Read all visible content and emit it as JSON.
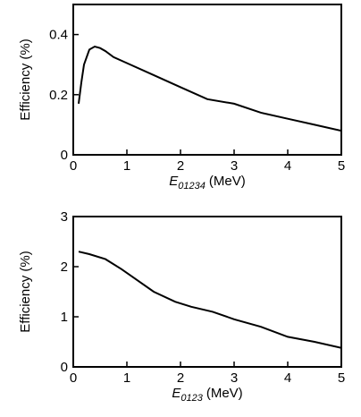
{
  "chart_data": [
    {
      "type": "line",
      "ylabel": "Efficiency (%)",
      "xlabel": "E",
      "xlabel_sub": "01234",
      "xlabel_unit": "(MeV)",
      "xlim": [
        0,
        5
      ],
      "xticks": [
        0,
        1,
        2,
        3,
        4,
        5
      ],
      "ylim": [
        0,
        0.5
      ],
      "yticks": [
        0,
        0.2,
        0.4
      ],
      "series": [
        {
          "color": "#000000",
          "x": [
            0.1,
            0.15,
            0.2,
            0.3,
            0.4,
            0.5,
            0.6,
            0.75,
            1,
            1.5,
            2,
            2.5,
            3,
            3.5,
            4,
            4.5,
            5
          ],
          "values": [
            0.17,
            0.24,
            0.3,
            0.35,
            0.36,
            0.355,
            0.345,
            0.325,
            0.305,
            0.265,
            0.225,
            0.185,
            0.17,
            0.14,
            0.12,
            0.1,
            0.08
          ]
        }
      ]
    },
    {
      "type": "line",
      "ylabel": "Efficiency (%)",
      "xlabel": "E",
      "xlabel_sub": "0123",
      "xlabel_unit": "(MeV)",
      "xlim": [
        0,
        5
      ],
      "xticks": [
        0,
        1,
        2,
        3,
        4,
        5
      ],
      "ylim": [
        0,
        3
      ],
      "yticks": [
        0,
        1,
        2,
        3
      ],
      "series": [
        {
          "color": "#000000",
          "x": [
            0.1,
            0.3,
            0.6,
            0.9,
            1.1,
            1.5,
            1.9,
            2.2,
            2.6,
            3,
            3.5,
            4,
            4.5,
            5
          ],
          "values": [
            2.3,
            2.25,
            2.15,
            1.95,
            1.8,
            1.5,
            1.3,
            1.2,
            1.1,
            0.95,
            0.8,
            0.6,
            0.5,
            0.38
          ]
        }
      ]
    }
  ]
}
